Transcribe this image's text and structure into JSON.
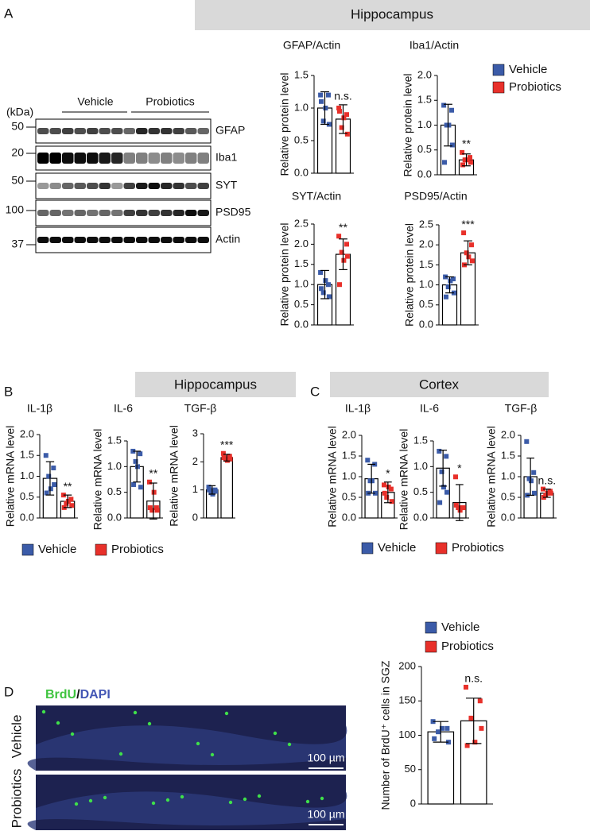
{
  "panel_labels": [
    "A",
    "B",
    "C",
    "D"
  ],
  "headers": [
    "Hippocampus",
    "Hippocampus",
    "Cortex"
  ],
  "blot": {
    "unit": "(kDa)",
    "groups": [
      "Vehicle",
      "Probiotics"
    ],
    "proteins": [
      "GFAP",
      "Iba1",
      "SYT",
      "PSD95",
      "Actin"
    ],
    "markers": [
      50,
      20,
      50,
      100,
      37
    ]
  },
  "images": {
    "stain": [
      "BrdU",
      "/",
      "DAPI"
    ],
    "rows": [
      "Vehicle",
      "Probiotics"
    ],
    "scale_bar": "100 µm"
  },
  "chart_data": [
    {
      "type": "bar",
      "title": "GFAP/Actin",
      "y_label": "Relative protein level",
      "annotation": "n.s.",
      "ylim": [
        0,
        1.5
      ],
      "yticks": [
        {
          "value": 0,
          "label": "0.0"
        },
        0.5,
        {
          "value": 1,
          "label": "1.0"
        },
        1.5
      ],
      "series": [
        {
          "name": "Vehicle",
          "color": "#3b5ba8",
          "values": [
            1.0
          ],
          "errors": [
            0.25
          ],
          "points": [
            1.2,
            1.2,
            0.8,
            0.75,
            1.1,
            1.0
          ]
        },
        {
          "name": "Probiotics",
          "color": "#e8302a",
          "values": [
            0.83
          ],
          "errors": [
            0.22
          ],
          "points": [
            1.0,
            0.9,
            0.7,
            0.6,
            0.95,
            0.85
          ]
        }
      ]
    },
    {
      "type": "bar",
      "title": "Iba1/Actin",
      "y_label": "Relative protein level",
      "annotation": "**",
      "ylim": [
        0,
        2.0
      ],
      "yticks": [
        {
          "value": 0,
          "label": "0.0"
        },
        0.5,
        {
          "value": 1,
          "label": "1.0"
        },
        1.5,
        {
          "value": 2,
          "label": "2.0"
        }
      ],
      "series": [
        {
          "name": "Vehicle",
          "color": "#3b5ba8",
          "values": [
            1.0
          ],
          "errors": [
            0.42
          ],
          "points": [
            1.4,
            1.3,
            1.0,
            0.6,
            0.25,
            1.0
          ]
        },
        {
          "name": "Probiotics",
          "color": "#e8302a",
          "values": [
            0.3
          ],
          "errors": [
            0.12
          ],
          "points": [
            0.45,
            0.35,
            0.3,
            0.25,
            0.2,
            0.3
          ]
        }
      ]
    },
    {
      "type": "bar",
      "title": "SYT/Actin",
      "y_label": "Relative protein level",
      "annotation": "**",
      "ylim": [
        0,
        2.5
      ],
      "yticks": [
        {
          "value": 0,
          "label": "0.0"
        },
        0.5,
        {
          "value": 1,
          "label": "1.0"
        },
        1.5,
        {
          "value": 2,
          "label": "2.0"
        },
        2.5
      ],
      "series": [
        {
          "name": "Vehicle",
          "color": "#3b5ba8",
          "values": [
            1.0
          ],
          "errors": [
            0.35
          ],
          "points": [
            1.3,
            1.0,
            0.8,
            0.7,
            0.9,
            1.1
          ]
        },
        {
          "name": "Probiotics",
          "color": "#e8302a",
          "values": [
            1.75
          ],
          "errors": [
            0.38
          ],
          "points": [
            2.2,
            2.0,
            1.8,
            1.7,
            1.0,
            1.6
          ]
        }
      ]
    },
    {
      "type": "bar",
      "title": "PSD95/Actin",
      "y_label": "Relative protein level",
      "annotation": "***",
      "ylim": [
        0,
        2.5
      ],
      "yticks": [
        {
          "value": 0,
          "label": "0.0"
        },
        0.5,
        {
          "value": 1,
          "label": "1.0"
        },
        1.5,
        {
          "value": 2,
          "label": "2.0"
        },
        2.5
      ],
      "series": [
        {
          "name": "Vehicle",
          "color": "#3b5ba8",
          "values": [
            1.0
          ],
          "errors": [
            0.2
          ],
          "points": [
            1.2,
            1.15,
            0.95,
            0.8,
            0.7,
            1.1
          ]
        },
        {
          "name": "Probiotics",
          "color": "#e8302a",
          "values": [
            1.8
          ],
          "errors": [
            0.3
          ],
          "points": [
            2.3,
            2.0,
            1.8,
            1.6,
            1.5,
            1.7
          ]
        }
      ]
    },
    {
      "type": "bar",
      "title": "IL-1β",
      "y_label": "Relative mRNA level",
      "annotation": "**",
      "ylim": [
        0,
        2.0
      ],
      "yticks": [
        {
          "value": 0,
          "label": "0.0"
        },
        0.5,
        {
          "value": 1,
          "label": "1.0"
        },
        1.5,
        {
          "value": 2,
          "label": "2.0"
        }
      ],
      "series": [
        {
          "name": "Vehicle",
          "color": "#3b5ba8",
          "values": [
            0.95
          ],
          "errors": [
            0.4
          ],
          "points": [
            1.5,
            1.2,
            1.0,
            0.8,
            0.6,
            0.7
          ]
        },
        {
          "name": "Probiotics",
          "color": "#e8302a",
          "values": [
            0.4
          ],
          "errors": [
            0.15
          ],
          "points": [
            0.55,
            0.45,
            0.35,
            0.3,
            0.25,
            0.4
          ]
        }
      ]
    },
    {
      "type": "bar",
      "title": "IL-6",
      "y_label": "Relative mRNA level",
      "annotation": "**",
      "ylim": [
        0,
        1.5
      ],
      "yticks": [
        {
          "value": 0,
          "label": "0.0"
        },
        0.5,
        {
          "value": 1,
          "label": "1.0"
        },
        1.5
      ],
      "series": [
        {
          "name": "Vehicle",
          "color": "#3b5ba8",
          "values": [
            1.0
          ],
          "errors": [
            0.3
          ],
          "points": [
            1.3,
            1.25,
            1.1,
            0.6,
            0.65,
            1.0
          ]
        },
        {
          "name": "Probiotics",
          "color": "#e8302a",
          "values": [
            0.33
          ],
          "errors": [
            0.35
          ],
          "points": [
            0.7,
            0.2,
            0.15,
            0.15,
            0.2,
            0.5
          ]
        }
      ]
    },
    {
      "type": "bar",
      "title": "TGF-β",
      "y_label": "Relative mRNA level",
      "annotation": "***",
      "ylim": [
        0,
        3
      ],
      "yticks": [
        0,
        1,
        2,
        3
      ],
      "series": [
        {
          "name": "Vehicle",
          "color": "#3b5ba8",
          "values": [
            1.0
          ],
          "errors": [
            0.15
          ],
          "points": [
            1.1,
            1.0,
            0.9,
            0.95,
            1.0,
            0.85
          ]
        },
        {
          "name": "Probiotics",
          "color": "#e8302a",
          "values": [
            2.15
          ],
          "errors": [
            0.12
          ],
          "points": [
            2.3,
            2.2,
            2.1,
            2.1,
            2.15,
            2.05
          ]
        }
      ]
    },
    {
      "type": "bar",
      "title": "IL-1β",
      "y_label": "Relative mRNA level",
      "annotation": "*",
      "ylim": [
        0,
        2.0
      ],
      "yticks": [
        {
          "value": 0,
          "label": "0.0"
        },
        0.5,
        {
          "value": 1,
          "label": "1.0"
        },
        1.5,
        {
          "value": 2,
          "label": "2.0"
        }
      ],
      "series": [
        {
          "name": "Vehicle",
          "color": "#3b5ba8",
          "values": [
            0.95
          ],
          "errors": [
            0.35
          ],
          "points": [
            1.4,
            1.3,
            0.9,
            0.6,
            0.6,
            0.9
          ]
        },
        {
          "name": "Probiotics",
          "color": "#e8302a",
          "values": [
            0.62
          ],
          "errors": [
            0.25
          ],
          "points": [
            0.8,
            0.7,
            0.5,
            0.4,
            0.6,
            0.75
          ]
        }
      ]
    },
    {
      "type": "bar",
      "title": "IL-6",
      "y_label": "Relative mRNA level",
      "annotation": "*",
      "ylim": [
        0,
        1.5
      ],
      "yticks": [
        {
          "value": 0,
          "label": "0.0"
        },
        0.5,
        {
          "value": 1,
          "label": "1.0"
        },
        1.5
      ],
      "series": [
        {
          "name": "Vehicle",
          "color": "#3b5ba8",
          "values": [
            0.97
          ],
          "errors": [
            0.35
          ],
          "points": [
            1.3,
            1.2,
            0.9,
            0.5,
            0.3,
            0.6
          ]
        },
        {
          "name": "Probiotics",
          "color": "#e8302a",
          "values": [
            0.3
          ],
          "errors": [
            0.35
          ],
          "points": [
            0.8,
            0.2,
            0.2,
            0.2,
            0.25,
            0.15
          ]
        }
      ]
    },
    {
      "type": "bar",
      "title": "TGF-β",
      "y_label": "Relative mRNA level",
      "annotation": "n.s.",
      "ylim": [
        0,
        2.0
      ],
      "yticks": [
        {
          "value": 0,
          "label": "0.0"
        },
        0.5,
        {
          "value": 1,
          "label": "1.0"
        },
        1.5,
        {
          "value": 2,
          "label": "2.0"
        }
      ],
      "series": [
        {
          "name": "Vehicle",
          "color": "#3b5ba8",
          "values": [
            1.0
          ],
          "errors": [
            0.45
          ],
          "points": [
            1.85,
            1.1,
            0.95,
            0.6,
            0.55,
            0.9
          ]
        },
        {
          "name": "Probiotics",
          "color": "#e8302a",
          "values": [
            0.6
          ],
          "errors": [
            0.1
          ],
          "points": [
            0.7,
            0.65,
            0.55,
            0.6,
            0.5,
            0.6
          ]
        }
      ]
    },
    {
      "type": "bar",
      "y_label": "Number of BrdU⁺ cells in SGZ",
      "annotation": "n.s.",
      "ylim": [
        0,
        200
      ],
      "yticks": [
        0,
        50,
        100,
        150,
        200
      ],
      "series": [
        {
          "name": "Vehicle",
          "color": "#3b5ba8",
          "values": [
            105
          ],
          "errors": [
            15
          ],
          "points": [
            120,
            110,
            105,
            90,
            95,
            110
          ]
        },
        {
          "name": "Probiotics",
          "color": "#e8302a",
          "values": [
            121
          ],
          "errors": [
            33
          ],
          "points": [
            170,
            150,
            125,
            110,
            85,
            90
          ]
        }
      ]
    }
  ]
}
